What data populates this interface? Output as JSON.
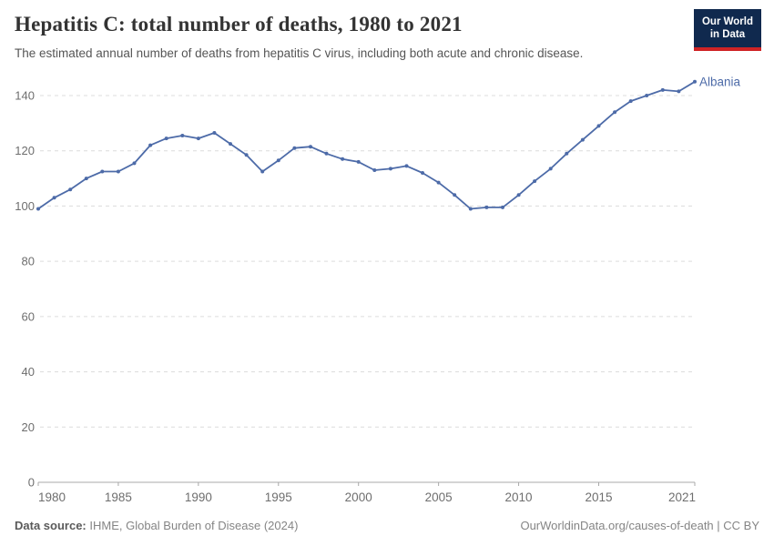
{
  "header": {
    "title": "Hepatitis C: total number of deaths, 1980 to 2021",
    "subtitle": "The estimated annual number of deaths from hepatitis C virus, including both acute and chronic disease.",
    "logo": {
      "line1": "Our World",
      "line2": "in Data",
      "bg_color": "#10294e",
      "accent_color": "#cf2325"
    }
  },
  "chart_data": {
    "type": "line",
    "title": "Hepatitis C: total number of deaths, 1980 to 2021",
    "series": [
      {
        "name": "Albania",
        "color": "#4d6ba8",
        "x": [
          1980,
          1981,
          1982,
          1983,
          1984,
          1985,
          1986,
          1987,
          1988,
          1989,
          1990,
          1991,
          1992,
          1993,
          1994,
          1995,
          1996,
          1997,
          1998,
          1999,
          2000,
          2001,
          2002,
          2003,
          2004,
          2005,
          2006,
          2007,
          2008,
          2009,
          2010,
          2011,
          2012,
          2013,
          2014,
          2015,
          2016,
          2017,
          2018,
          2019,
          2020,
          2021
        ],
        "values": [
          99,
          103,
          106,
          110,
          112.5,
          112.5,
          115.5,
          122,
          124.5,
          125.5,
          124.5,
          126.5,
          122.5,
          118.5,
          112.5,
          116.5,
          121,
          121.5,
          119,
          117,
          116,
          113,
          113.5,
          114.5,
          112,
          108.5,
          104,
          99,
          99.5,
          99.5,
          104,
          109,
          113.5,
          119,
          124,
          129,
          134,
          138,
          140,
          142,
          141.5,
          145
        ]
      }
    ],
    "x_ticks": [
      1980,
      1985,
      1990,
      1995,
      2000,
      2005,
      2010,
      2015,
      2021
    ],
    "y_ticks": [
      0,
      20,
      40,
      60,
      80,
      100,
      120,
      140
    ],
    "xlim": [
      1980,
      2021
    ],
    "ylim": [
      0,
      148
    ],
    "grid": "horizontal-dashed",
    "legend_position": "end-of-line-label",
    "tick_color": "#6e6e6e",
    "grid_color": "#dcdcdc",
    "axis_color": "#a8a8a8"
  },
  "footer": {
    "source_label": "Data source:",
    "source_text": " IHME, Global Burden of Disease (2024)",
    "credit": "OurWorldinData.org/causes-of-death | CC BY"
  }
}
